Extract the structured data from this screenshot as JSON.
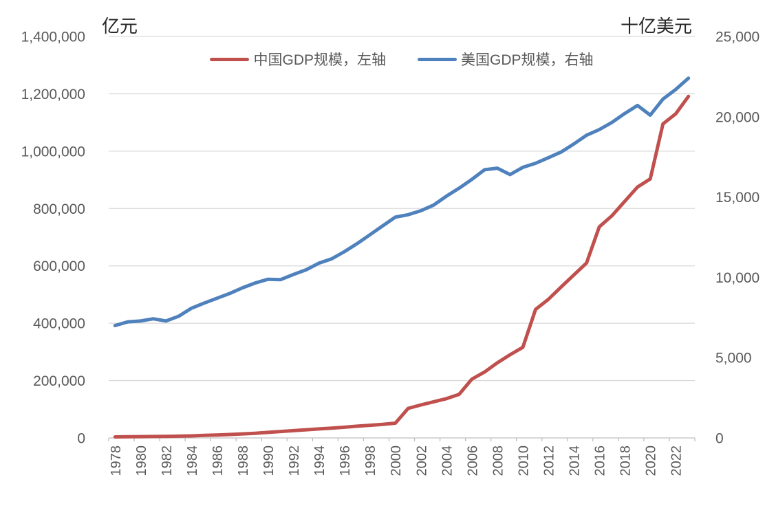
{
  "chart": {
    "left_axis": {
      "unit": "亿元",
      "ticks": [
        "1,400,000",
        "1,200,000",
        "1,000,000",
        "800,000",
        "600,000",
        "400,000",
        "200,000",
        "0"
      ]
    },
    "right_axis": {
      "unit": "十亿美元",
      "ticks": [
        "25,000",
        "20,000",
        "15,000",
        "10,000",
        "5,000",
        "0"
      ]
    },
    "x_axis": {
      "labels": [
        "1978",
        "1980",
        "1982",
        "1984",
        "1986",
        "1988",
        "1990",
        "1992",
        "1994",
        "1996",
        "1998",
        "2000",
        "2002",
        "2004",
        "2006",
        "2008",
        "2010",
        "2012",
        "2014",
        "2016",
        "2018",
        "2020",
        "2022"
      ]
    },
    "legend": [
      {
        "label": "中国GDP规模，左轴",
        "color": "#C0504D"
      },
      {
        "label": "美国GDP规模，右轴",
        "color": "#4F81BD"
      }
    ],
    "colors": {
      "gridline": "#D9D9D9",
      "axis_line": "#BFBFBF",
      "tick_text": "#595959",
      "china_red": "#C0504D",
      "us_blue": "#4F81BD"
    }
  },
  "chart_data": {
    "type": "line",
    "x": [
      1978,
      1979,
      1980,
      1981,
      1982,
      1983,
      1984,
      1985,
      1986,
      1987,
      1988,
      1989,
      1990,
      1991,
      1992,
      1993,
      1994,
      1995,
      1996,
      1997,
      1998,
      1999,
      2000,
      2001,
      2002,
      2003,
      2004,
      2005,
      2006,
      2007,
      2008,
      2009,
      2010,
      2011,
      2012,
      2013,
      2014,
      2015,
      2016,
      2017,
      2018,
      2019,
      2020,
      2021,
      2022,
      2023
    ],
    "x_label_interval": 2,
    "series": [
      {
        "name": "中国GDP规模，左轴",
        "axis": "left",
        "unit": "亿元",
        "color": "#C0504D",
        "values": [
          3600,
          4100,
          4600,
          5000,
          5600,
          6300,
          7300,
          9100,
          10400,
          12100,
          14200,
          16300,
          19500,
          22500,
          25500,
          28500,
          31500,
          34000,
          37500,
          41000,
          44000,
          47500,
          51500,
          103000,
          115000,
          126000,
          137000,
          152000,
          205000,
          230000,
          262000,
          290000,
          316000,
          448000,
          483000,
          526000,
          568000,
          610000,
          736000,
          775000,
          825000,
          875000,
          903000,
          1095000,
          1130000,
          1191000
        ]
      },
      {
        "name": "美国GDP规模，右轴",
        "axis": "right",
        "unit": "十亿美元",
        "color": "#4F81BD",
        "values": [
          7000,
          7230,
          7280,
          7420,
          7280,
          7580,
          8080,
          8400,
          8700,
          9000,
          9350,
          9650,
          9880,
          9860,
          10180,
          10470,
          10880,
          11150,
          11600,
          12100,
          12650,
          13200,
          13750,
          13900,
          14150,
          14500,
          15050,
          15550,
          16100,
          16700,
          16800,
          16400,
          16850,
          17100,
          17450,
          17800,
          18300,
          18850,
          19200,
          19650,
          20200,
          20700,
          20100,
          21100,
          21700,
          22400
        ]
      }
    ],
    "left_ylim": [
      0,
      1400000
    ],
    "right_ylim": [
      0,
      25000
    ],
    "left_tick_step": 200000,
    "right_tick_step": 5000,
    "grid": true,
    "legend_position": "top"
  }
}
